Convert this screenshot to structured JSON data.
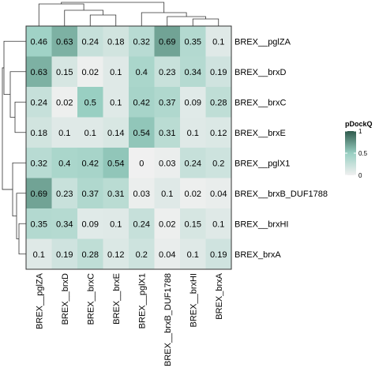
{
  "chart_data": {
    "type": "heatmap",
    "rows": [
      "BREX__pglZA",
      "BREX__brxD",
      "BREX__brxC",
      "BREX__brxE",
      "BREX__pglX1",
      "BREX__brxB_DUF1788",
      "BREX__brxHI",
      "BREX_brxA"
    ],
    "columns": [
      "BREX__pglZA",
      "BREX__brxD",
      "BREX__brxC",
      "BREX__brxE",
      "BREX__pglX1",
      "BREX__brxB_DUF1788",
      "BREX__brxHI",
      "BREX_brxA"
    ],
    "values": [
      [
        0.46,
        0.63,
        0.24,
        0.18,
        0.32,
        0.69,
        0.35,
        0.1
      ],
      [
        0.63,
        0.15,
        0.02,
        0.1,
        0.4,
        0.23,
        0.34,
        0.19
      ],
      [
        0.24,
        0.02,
        0.5,
        0.1,
        0.42,
        0.37,
        0.09,
        0.28
      ],
      [
        0.18,
        0.1,
        0.1,
        0.14,
        0.54,
        0.31,
        0.1,
        0.12
      ],
      [
        0.32,
        0.4,
        0.42,
        0.54,
        0,
        0.03,
        0.24,
        0.2
      ],
      [
        0.69,
        0.23,
        0.37,
        0.31,
        0.03,
        0.1,
        0.02,
        0.04
      ],
      [
        0.35,
        0.34,
        0.09,
        0.1,
        0.24,
        0.02,
        0.15,
        0.1
      ],
      [
        0.1,
        0.19,
        0.28,
        0.12,
        0.2,
        0.04,
        0.1,
        0.19
      ]
    ],
    "cell_labels": [
      [
        "0.46",
        "0.63",
        "0.24",
        "0.18",
        "0.32",
        "0.69",
        "0.35",
        "0.1"
      ],
      [
        "0.63",
        "0.15",
        "0.02",
        "0.1",
        "0.4",
        "0.23",
        "0.34",
        "0.19"
      ],
      [
        "0.24",
        "0.02",
        "0.5",
        "0.1",
        "0.42",
        "0.37",
        "0.09",
        "0.28"
      ],
      [
        "0.18",
        "0.1",
        "0.1",
        "0.14",
        "0.54",
        "0.31",
        "0.1",
        "0.12"
      ],
      [
        "0.32",
        "0.4",
        "0.42",
        "0.54",
        "0",
        "0.03",
        "0.24",
        "0.2"
      ],
      [
        "0.69",
        "0.23",
        "0.37",
        "0.31",
        "0.03",
        "0.1",
        "0.02",
        "0.04"
      ],
      [
        "0.35",
        "0.34",
        "0.09",
        "0.1",
        "0.24",
        "0.02",
        "0.15",
        "0.1"
      ],
      [
        "0.1",
        "0.19",
        "0.28",
        "0.12",
        "0.2",
        "0.04",
        "0.1",
        "0.19"
      ]
    ],
    "legend": {
      "title": "pDockQ",
      "range": [
        0,
        1
      ],
      "ticks": [
        0,
        0.5,
        1
      ],
      "tick_labels": [
        "0",
        "0.5",
        "1"
      ],
      "placement": "right"
    },
    "color_scale": {
      "low": "#f0f0f0",
      "mid": "#99cfc2",
      "high": "#2f5a4c"
    },
    "dendrograms": {
      "column": true,
      "row": true
    }
  }
}
